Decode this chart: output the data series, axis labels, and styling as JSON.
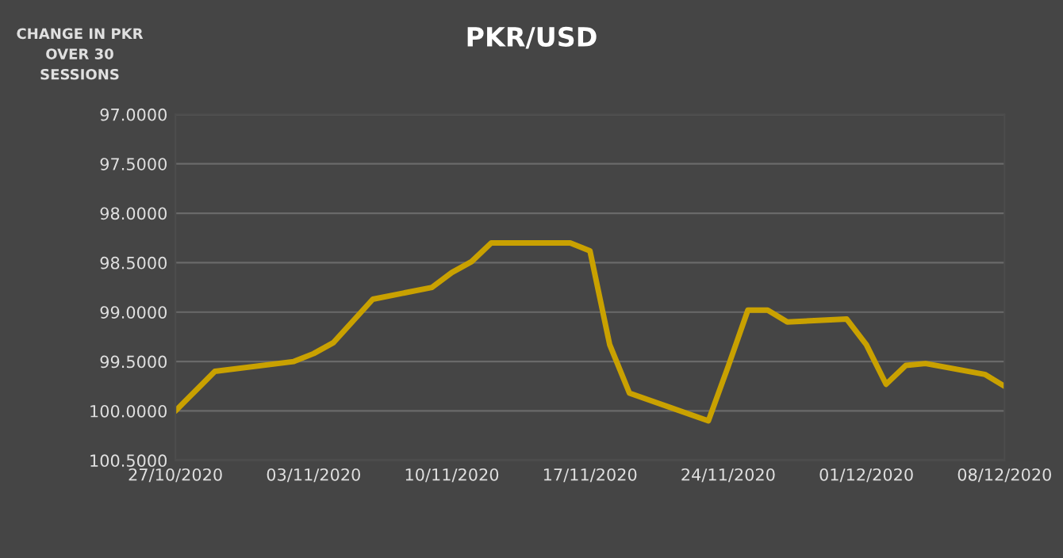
{
  "chart_data": {
    "type": "line",
    "title": "PKR/USD",
    "ylabel": "CHANGE IN PKR OVER 30 SESSIONS",
    "x": [
      "2020-10-27",
      "2020-10-28",
      "2020-10-29",
      "2020-11-02",
      "2020-11-03",
      "2020-11-04",
      "2020-11-06",
      "2020-11-09",
      "2020-11-10",
      "2020-11-11",
      "2020-11-12",
      "2020-11-16",
      "2020-11-17",
      "2020-11-18",
      "2020-11-19",
      "2020-11-23",
      "2020-11-24",
      "2020-11-25",
      "2020-11-26",
      "2020-11-27",
      "2020-11-30",
      "2020-12-01",
      "2020-12-02",
      "2020-12-03",
      "2020-12-04",
      "2020-12-07",
      "2020-12-08"
    ],
    "series": [
      {
        "color": "#c9a100",
        "values": [
          100.0,
          99.8,
          99.6,
          99.5,
          99.42,
          99.31,
          98.87,
          98.75,
          98.6,
          98.49,
          98.3,
          98.3,
          98.38,
          99.33,
          99.82,
          100.1,
          99.55,
          98.98,
          98.98,
          99.1,
          99.07,
          99.33,
          99.73,
          99.54,
          99.52,
          99.63,
          99.75
        ]
      }
    ],
    "xlim": [
      "2020-10-27",
      "2020-12-08"
    ],
    "xticks": [
      {
        "value": "2020-10-27",
        "label": "27/10/2020"
      },
      {
        "value": "2020-11-03",
        "label": "03/11/2020"
      },
      {
        "value": "2020-11-10",
        "label": "10/11/2020"
      },
      {
        "value": "2020-11-17",
        "label": "17/11/2020"
      },
      {
        "value": "2020-11-24",
        "label": "24/11/2020"
      },
      {
        "value": "2020-12-01",
        "label": "01/12/2020"
      },
      {
        "value": "2020-12-08",
        "label": "08/12/2020"
      }
    ],
    "ylim": [
      100.5,
      97.0
    ],
    "yticks": [
      {
        "value": 97.0,
        "label": "97.0000"
      },
      {
        "value": 97.5,
        "label": "97.5000"
      },
      {
        "value": 98.0,
        "label": "98.0000"
      },
      {
        "value": 98.5,
        "label": "98.5000"
      },
      {
        "value": 99.0,
        "label": "99.0000"
      },
      {
        "value": 99.5,
        "label": "99.5000"
      },
      {
        "value": 100.0,
        "label": "100.0000"
      },
      {
        "value": 100.5,
        "label": "100.5000"
      }
    ],
    "grid": "y",
    "marker": "none",
    "line_style": "solid"
  }
}
